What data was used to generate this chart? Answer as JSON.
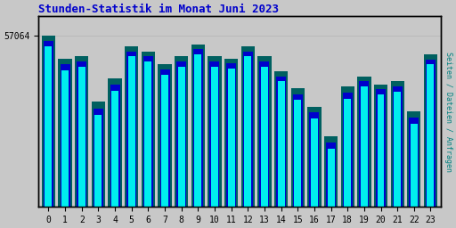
{
  "title": "Stunden-Statistik im Monat Juni 2023",
  "title_color": "#0000CC",
  "ylabel_right": "Seiten / Dateien / Anfragen",
  "ylabel_right_color": "#008080",
  "ytick_label": "57064",
  "background_color": "#C8C8C8",
  "plot_bg_color": "#C8C8C8",
  "hours": [
    0,
    1,
    2,
    3,
    4,
    5,
    6,
    7,
    8,
    9,
    10,
    11,
    12,
    13,
    14,
    15,
    16,
    17,
    18,
    19,
    20,
    21,
    22,
    23
  ],
  "bar1_values": [
    57064,
    54800,
    55000,
    50500,
    52800,
    56000,
    55500,
    54200,
    55000,
    56200,
    55000,
    54800,
    56000,
    55000,
    53500,
    51800,
    50000,
    47000,
    52000,
    53000,
    52200,
    52500,
    49500,
    55200
  ],
  "bar2_values": [
    56500,
    54200,
    54500,
    49800,
    52200,
    55500,
    55000,
    53700,
    54500,
    55700,
    54500,
    54300,
    55500,
    54500,
    53000,
    51200,
    49400,
    46400,
    51400,
    52500,
    51700,
    52000,
    48900,
    54700
  ],
  "bar3_values": [
    56000,
    53600,
    54000,
    49200,
    51600,
    55000,
    54500,
    53200,
    54000,
    55200,
    54000,
    53800,
    55000,
    54000,
    52500,
    50700,
    48800,
    45800,
    50800,
    52000,
    51200,
    51500,
    48300,
    54200
  ],
  "bar1_color": "#006060",
  "bar2_color": "#0000CC",
  "bar3_color": "#00EEEE",
  "bar_width": 0.82,
  "ylim_min": 40000,
  "ylim_max": 59000,
  "ytick_val": 57064,
  "figsize": [
    5.12,
    2.56
  ],
  "dpi": 100,
  "font_family": "monospace",
  "grid_color": "#AAAAAA",
  "spine_color": "#000000"
}
